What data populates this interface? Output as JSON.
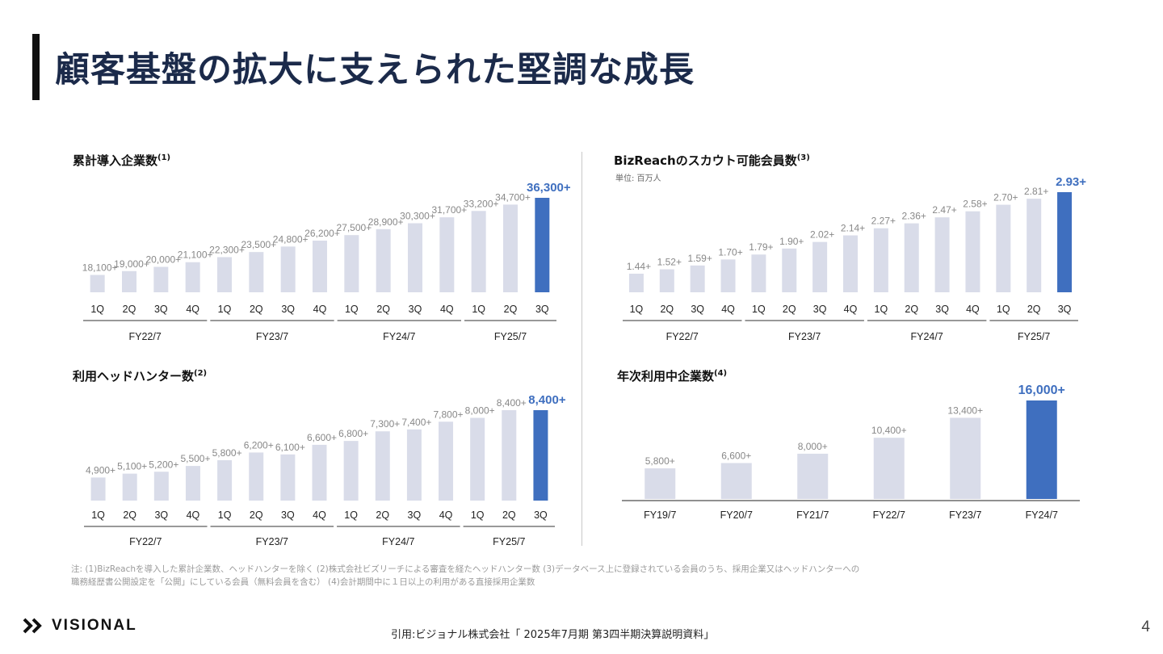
{
  "page": {
    "title": "顧客基盤の拡大に支えられた堅調な成長",
    "notes": [
      "注: (1)BizReachを導入した累計企業数、ヘッドハンターを除く (2)株式会社ビズリーチによる審査を経たヘッドハンター数 (3)データベース上に登録されている会員のうち、採用企業又はヘッドハンターへの",
      "職務経歴書公開設定を「公開」にしている会員（無料会員を含む） (4)会計期間中に１日以上の利用がある直接採用企業数"
    ],
    "logo_text": "VISIONAL",
    "citation": "引用:ビジョナル株式会社「 2025年7月期 第3四半期決算説明資料」",
    "page_number": "4"
  },
  "colors": {
    "bar": "#d9dce9",
    "highlight": "#3f6fbf",
    "label": "#888888",
    "axis": "#222222"
  },
  "chart_data": [
    {
      "type": "bar",
      "title": "累計導入企業数",
      "title_sup": "(1)",
      "categories": [
        "1Q",
        "2Q",
        "3Q",
        "4Q",
        "1Q",
        "2Q",
        "3Q",
        "4Q",
        "1Q",
        "2Q",
        "3Q",
        "4Q",
        "1Q",
        "2Q",
        "3Q"
      ],
      "groups": [
        {
          "label": "FY22/7",
          "count": 4
        },
        {
          "label": "FY23/7",
          "count": 4
        },
        {
          "label": "FY24/7",
          "count": 4
        },
        {
          "label": "FY25/7",
          "count": 3
        }
      ],
      "values": [
        18100,
        19000,
        20000,
        21100,
        22300,
        23500,
        24800,
        26200,
        27500,
        28900,
        30300,
        31700,
        33200,
        34700,
        36300
      ],
      "labels": [
        "18,100+",
        "19,000+",
        "20,000+",
        "21,100+",
        "22,300+",
        "23,500+",
        "24,800+",
        "26,200+",
        "27,500+",
        "28,900+",
        "30,300+",
        "31,700+",
        "33,200+",
        "34,700+",
        "36,300+"
      ],
      "highlight_index": 14,
      "ylim": [
        14000,
        36300
      ]
    },
    {
      "type": "bar",
      "title": "BizReachのスカウト可能会員数",
      "title_sup": "(3)",
      "unit": "単位: 百万人",
      "categories": [
        "1Q",
        "2Q",
        "3Q",
        "4Q",
        "1Q",
        "2Q",
        "3Q",
        "4Q",
        "1Q",
        "2Q",
        "3Q",
        "4Q",
        "1Q",
        "2Q",
        "3Q"
      ],
      "groups": [
        {
          "label": "FY22/7",
          "count": 4
        },
        {
          "label": "FY23/7",
          "count": 4
        },
        {
          "label": "FY24/7",
          "count": 4
        },
        {
          "label": "FY25/7",
          "count": 3
        }
      ],
      "values": [
        1.44,
        1.52,
        1.59,
        1.7,
        1.79,
        1.9,
        2.02,
        2.14,
        2.27,
        2.36,
        2.47,
        2.58,
        2.7,
        2.81,
        2.93
      ],
      "labels": [
        "1.44+",
        "1.52+",
        "1.59+",
        "1.70+",
        "1.79+",
        "1.90+",
        "2.02+",
        "2.14+",
        "2.27+",
        "2.36+",
        "2.47+",
        "2.58+",
        "2.70+",
        "2.81+",
        "2.93+"
      ],
      "highlight_index": 14,
      "ylim": [
        1.1,
        2.93
      ]
    },
    {
      "type": "bar",
      "title": "利用ヘッドハンター数",
      "title_sup": "(2)",
      "categories": [
        "1Q",
        "2Q",
        "3Q",
        "4Q",
        "1Q",
        "2Q",
        "3Q",
        "4Q",
        "1Q",
        "2Q",
        "3Q",
        "4Q",
        "1Q",
        "2Q",
        "3Q"
      ],
      "groups": [
        {
          "label": "FY22/7",
          "count": 4
        },
        {
          "label": "FY23/7",
          "count": 4
        },
        {
          "label": "FY24/7",
          "count": 4
        },
        {
          "label": "FY25/7",
          "count": 3
        }
      ],
      "values": [
        4900,
        5100,
        5200,
        5500,
        5800,
        6200,
        6100,
        6600,
        6800,
        7300,
        7400,
        7800,
        8000,
        8400,
        8400
      ],
      "labels": [
        "4,900+",
        "5,100+",
        "5,200+",
        "5,500+",
        "5,800+",
        "6,200+",
        "6,100+",
        "6,600+",
        "6,800+",
        "7,300+",
        "7,400+",
        "7,800+",
        "8,000+",
        "8,400+",
        "8,400+"
      ],
      "highlight_index": 14,
      "ylim": [
        3700,
        8400
      ]
    },
    {
      "type": "bar",
      "title": "年次利用中企業数",
      "title_sup": "(4)",
      "categories": [
        "FY19/7",
        "FY20/7",
        "FY21/7",
        "FY22/7",
        "FY23/7",
        "FY24/7"
      ],
      "groups": [],
      "values": [
        5800,
        6600,
        8000,
        10400,
        13400,
        16000
      ],
      "labels": [
        "5,800+",
        "6,600+",
        "8,000+",
        "10,400+",
        "13,400+",
        "16,000+"
      ],
      "highlight_index": 5,
      "ylim": [
        1200,
        16000
      ]
    }
  ]
}
